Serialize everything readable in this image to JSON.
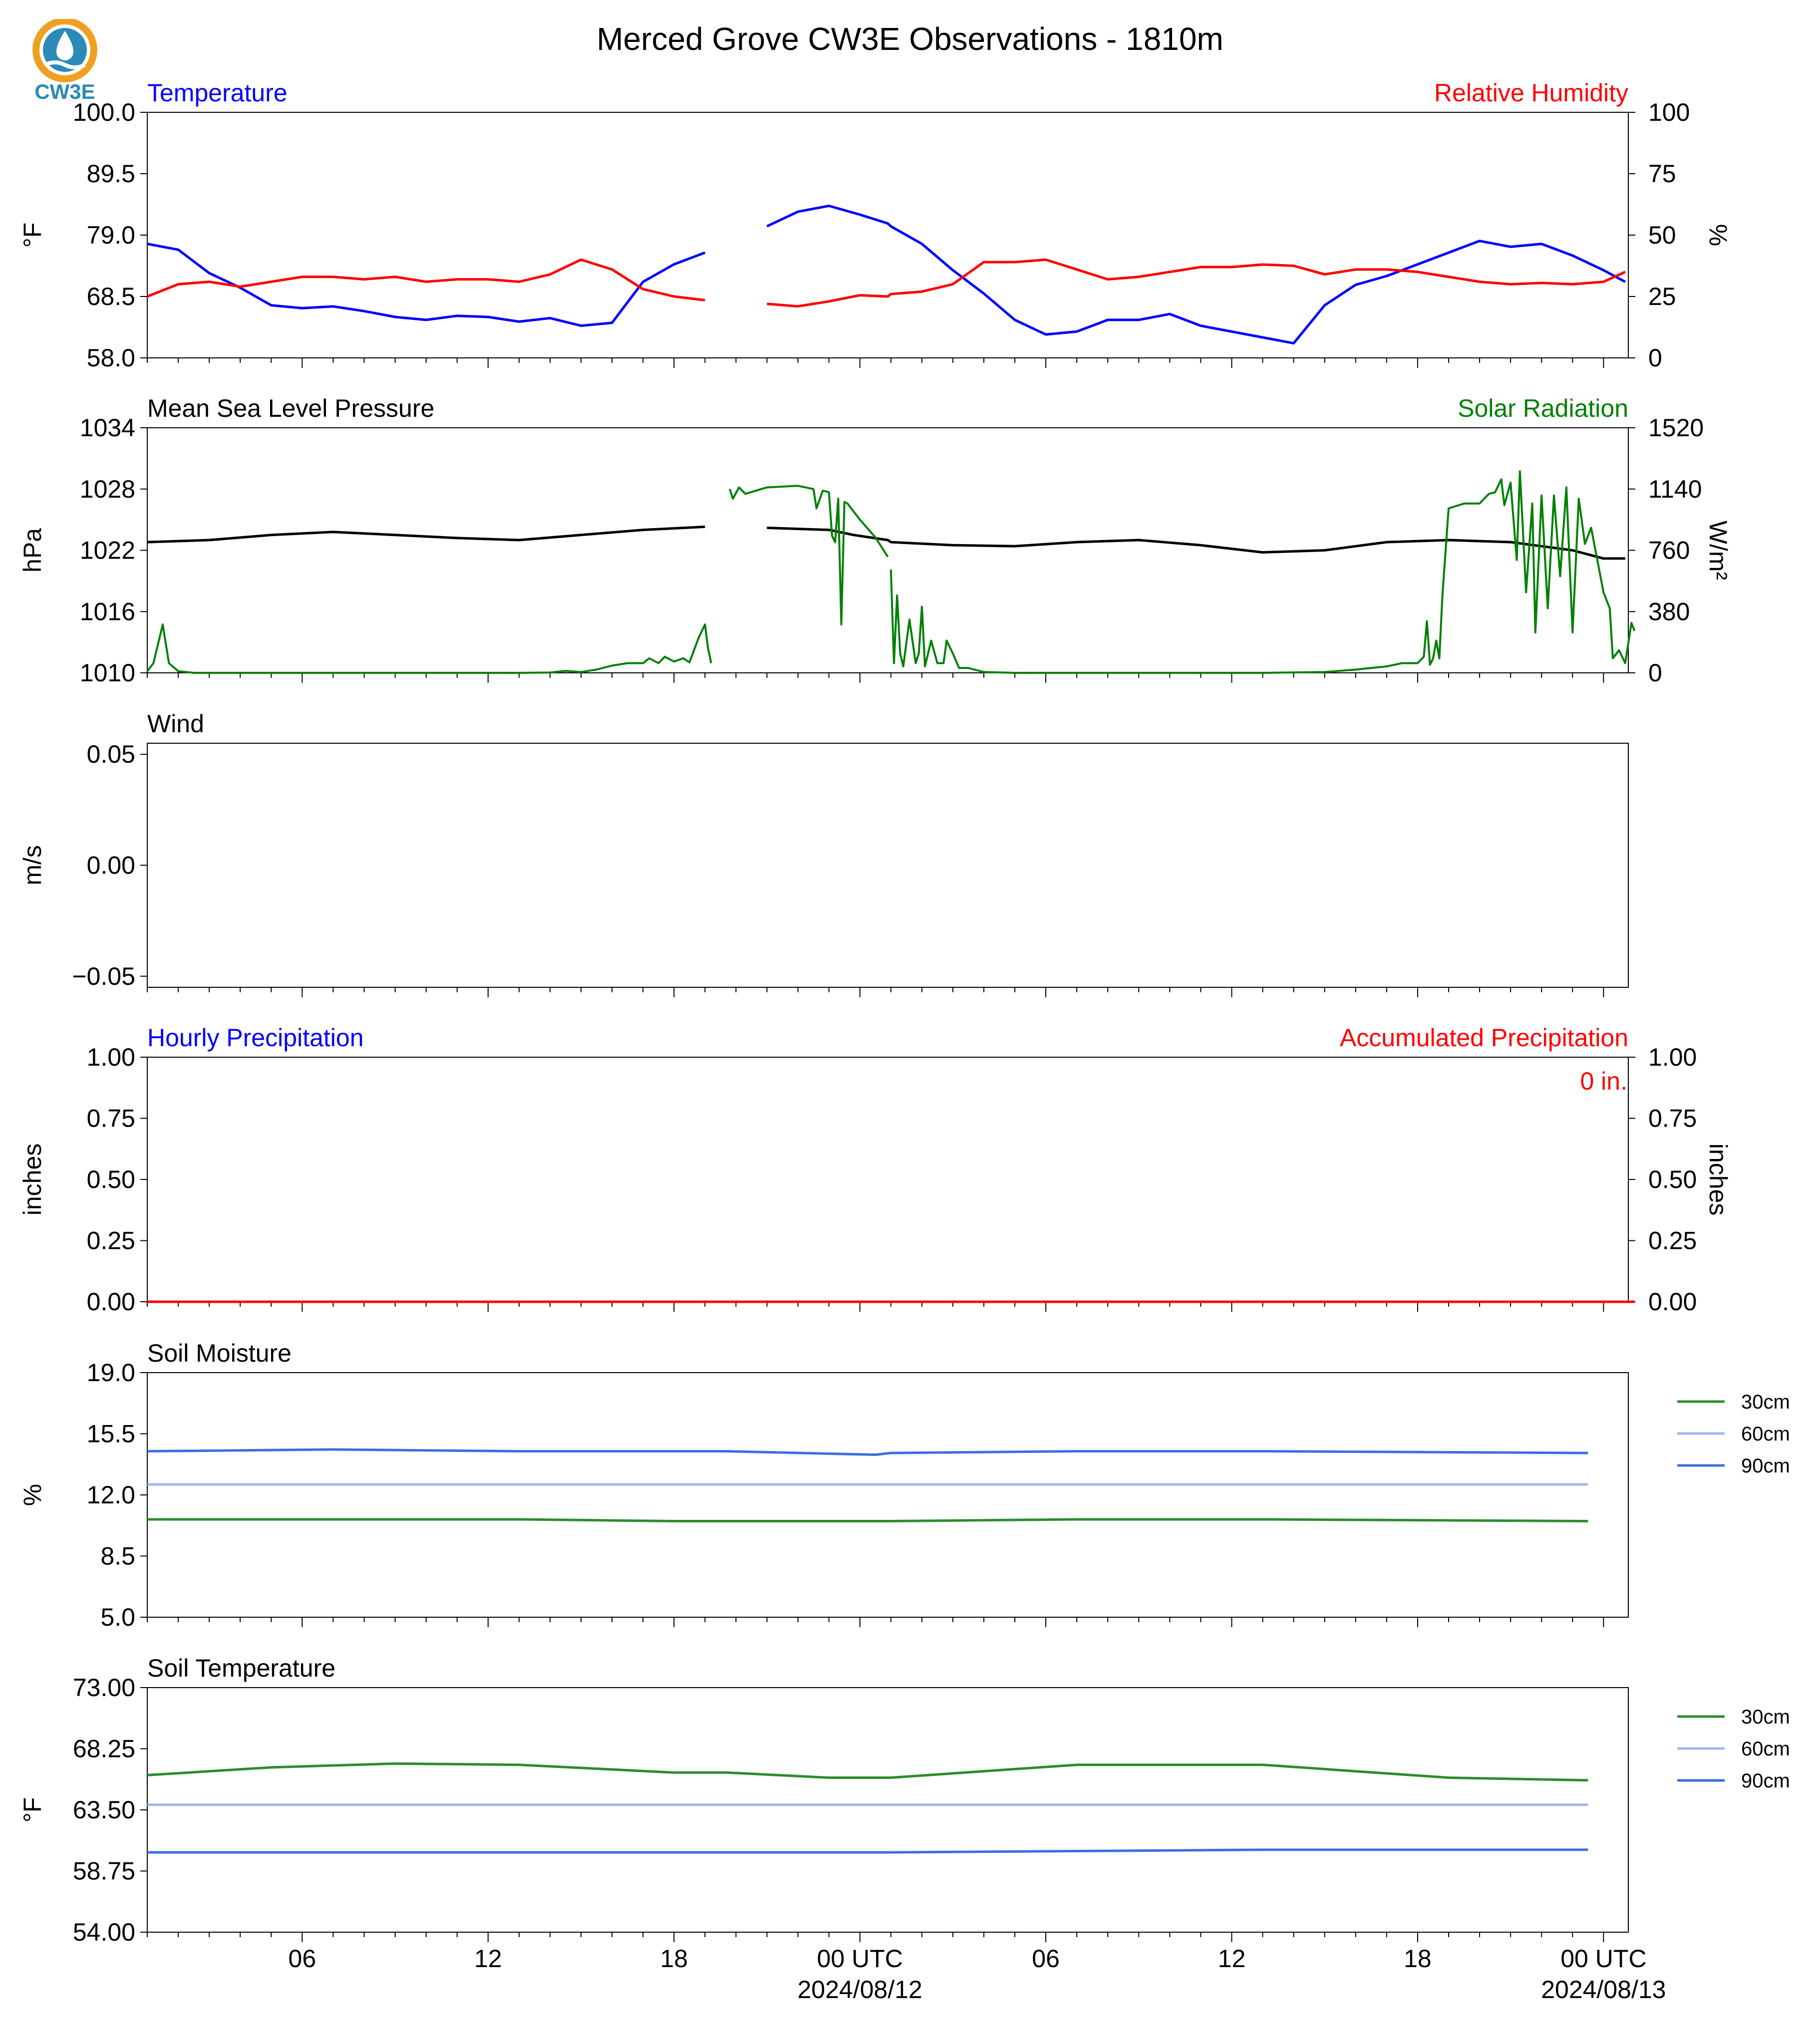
{
  "figure": {
    "title": "Merced Grove CW3E Observations - 1810m",
    "logo_text": "CW3E",
    "date_labels": [
      "2024/08/12",
      "2024/08/13"
    ]
  },
  "colors": {
    "temperature": "#0000ff",
    "humidity": "#ff0000",
    "pressure": "#000000",
    "solar": "#008000",
    "soil_30": "#2e8b2e",
    "soil_60": "#a4b4f0",
    "soil_90": "#3a6fe0",
    "logo_orange": "#f0a020",
    "logo_blue": "#2a8ab8"
  },
  "chart_data": [
    {
      "type": "line",
      "id": "temp",
      "title_left": "Temperature",
      "title_right": "Relative Humidity",
      "ylabel_left": "$^\\circ$F",
      "ylabel_right": "%",
      "ylim_left": [
        58.0,
        100.0
      ],
      "ylim_right": [
        0,
        100
      ],
      "yticks_left": [
        "58.0",
        "68.5",
        "79.0",
        "89.5",
        "100.0"
      ],
      "yticks_right": [
        "0",
        "25",
        "50",
        "75",
        "100"
      ],
      "x_hours": [
        0,
        1,
        2,
        3,
        4,
        5,
        6,
        7,
        8,
        9,
        10,
        11,
        12,
        13,
        14,
        15,
        16,
        17,
        18,
        18.7,
        20,
        21,
        22,
        23,
        23.9,
        24,
        25,
        26,
        27,
        28,
        29,
        30,
        31,
        32,
        33,
        34,
        35,
        36,
        37,
        38,
        39,
        40,
        41,
        42,
        43,
        44,
        45,
        46,
        47,
        47.7
      ],
      "series": [
        {
          "name": "Temperature",
          "axis": "left",
          "color_key": "temperature",
          "values": [
            77.5,
            76.5,
            72.5,
            70,
            67,
            66.5,
            66.8,
            66,
            65,
            64.5,
            65.2,
            65,
            64.2,
            64.8,
            63.5,
            64,
            71,
            74,
            76,
            null,
            80.5,
            83,
            84,
            82.5,
            81,
            80.5,
            77.5,
            73,
            69,
            64.5,
            62,
            62.5,
            64.5,
            64.5,
            65.5,
            63.5,
            62.5,
            61.5,
            60.5,
            67,
            70.5,
            72,
            74,
            76,
            78,
            77,
            77.5,
            75.5,
            73,
            71
          ]
        },
        {
          "name": "Relative Humidity",
          "axis": "right",
          "color_key": "humidity",
          "values": [
            25,
            30,
            31,
            29,
            31,
            33,
            33,
            32,
            33,
            31,
            32,
            32,
            31,
            34,
            40,
            36,
            28,
            25,
            23.5,
            null,
            22,
            21,
            23,
            25.5,
            25,
            26,
            27,
            30,
            39,
            39,
            40,
            36,
            32,
            33,
            35,
            37,
            37,
            38,
            37.5,
            34,
            36,
            36,
            35,
            33,
            31,
            30,
            30.5,
            30,
            31,
            35
          ]
        }
      ]
    },
    {
      "type": "line",
      "id": "pres",
      "title_left": "Mean Sea Level Pressure",
      "title_right": "Solar Radiation",
      "ylabel_left": "hPa",
      "ylabel_right": "W/m²",
      "ylim_left": [
        1010,
        1034
      ],
      "ylim_right": [
        0,
        1520
      ],
      "yticks_left": [
        "1010",
        "1016",
        "1022",
        "1028",
        "1034"
      ],
      "yticks_right": [
        "0",
        "380",
        "760",
        "1140",
        "1520"
      ],
      "x_hours": [
        0,
        2,
        4,
        6,
        8,
        10,
        12,
        14,
        16,
        18,
        18.7,
        20,
        22,
        22.8,
        23.9,
        24,
        26,
        28,
        30,
        32,
        34,
        36,
        38,
        40,
        42,
        44,
        46,
        47,
        47.7
      ],
      "series": [
        {
          "name": "Mean Sea Level Pressure",
          "axis": "left",
          "color_key": "pressure",
          "values": [
            1022.8,
            1023.0,
            1023.5,
            1023.8,
            1023.5,
            1023.2,
            1023.0,
            1023.5,
            1024.0,
            1024.3,
            null,
            1024.2,
            1024.0,
            1023.5,
            1023.0,
            1022.8,
            1022.5,
            1022.4,
            1022.8,
            1023.0,
            1022.5,
            1021.8,
            1022.0,
            1022.8,
            1023.0,
            1022.8,
            1022.0,
            1021.2,
            1021.2
          ]
        }
      ],
      "solar_points": [
        [
          0,
          10
        ],
        [
          0.2,
          60
        ],
        [
          0.5,
          300
        ],
        [
          0.7,
          60
        ],
        [
          1,
          10
        ],
        [
          1.5,
          0
        ],
        [
          3,
          0
        ],
        [
          6,
          0
        ],
        [
          9,
          0
        ],
        [
          12,
          0
        ],
        [
          13,
          2
        ],
        [
          13.5,
          12
        ],
        [
          14,
          5
        ],
        [
          14.5,
          20
        ],
        [
          15,
          45
        ],
        [
          15.5,
          60
        ],
        [
          16,
          60
        ],
        [
          16.2,
          90
        ],
        [
          16.5,
          60
        ],
        [
          16.7,
          100
        ],
        [
          17,
          70
        ],
        [
          17.3,
          90
        ],
        [
          17.5,
          65
        ],
        [
          17.8,
          220
        ],
        [
          18,
          300
        ],
        [
          18.1,
          150
        ],
        [
          18.2,
          60
        ],
        [
          18.7,
          null
        ],
        [
          18.8,
          1140
        ],
        [
          18.9,
          1080
        ],
        [
          19.1,
          1150
        ],
        [
          19.3,
          1110
        ],
        [
          20,
          1150
        ],
        [
          21,
          1160
        ],
        [
          21.5,
          1140
        ],
        [
          21.6,
          1020
        ],
        [
          21.8,
          1130
        ],
        [
          22,
          1120
        ],
        [
          22.1,
          850
        ],
        [
          22.2,
          810
        ],
        [
          22.3,
          1080
        ],
        [
          22.4,
          300
        ],
        [
          22.5,
          1060
        ],
        [
          22.6,
          1050
        ],
        [
          23.0,
          950
        ],
        [
          23.5,
          840
        ],
        [
          23.9,
          720
        ],
        [
          23.95,
          null
        ],
        [
          24.0,
          640
        ],
        [
          24.1,
          60
        ],
        [
          24.2,
          480
        ],
        [
          24.3,
          120
        ],
        [
          24.4,
          40
        ],
        [
          24.6,
          330
        ],
        [
          24.8,
          60
        ],
        [
          24.9,
          120
        ],
        [
          25.0,
          410
        ],
        [
          25.1,
          40
        ],
        [
          25.3,
          200
        ],
        [
          25.5,
          60
        ],
        [
          25.7,
          60
        ],
        [
          25.8,
          200
        ],
        [
          26.0,
          120
        ],
        [
          26.2,
          30
        ],
        [
          26.5,
          30
        ],
        [
          27,
          5
        ],
        [
          28,
          0
        ],
        [
          30,
          0
        ],
        [
          33,
          0
        ],
        [
          36,
          0
        ],
        [
          38,
          5
        ],
        [
          39,
          20
        ],
        [
          40,
          40
        ],
        [
          40.5,
          60
        ],
        [
          41,
          60
        ],
        [
          41.2,
          100
        ],
        [
          41.3,
          320
        ],
        [
          41.4,
          50
        ],
        [
          41.5,
          90
        ],
        [
          41.6,
          200
        ],
        [
          41.7,
          90
        ],
        [
          41.8,
          480
        ],
        [
          42,
          1020
        ],
        [
          42.5,
          1050
        ],
        [
          43,
          1050
        ],
        [
          43.3,
          1110
        ],
        [
          43.5,
          1120
        ],
        [
          43.7,
          1200
        ],
        [
          43.8,
          1040
        ],
        [
          44,
          1180
        ],
        [
          44.2,
          700
        ],
        [
          44.3,
          1250
        ],
        [
          44.5,
          500
        ],
        [
          44.7,
          1050
        ],
        [
          44.8,
          250
        ],
        [
          45,
          1100
        ],
        [
          45.2,
          400
        ],
        [
          45.4,
          1100
        ],
        [
          45.6,
          600
        ],
        [
          45.8,
          1150
        ],
        [
          46,
          250
        ],
        [
          46.2,
          1080
        ],
        [
          46.4,
          800
        ],
        [
          46.6,
          900
        ],
        [
          46.8,
          700
        ],
        [
          47,
          500
        ],
        [
          47.2,
          400
        ],
        [
          47.3,
          90
        ],
        [
          47.5,
          140
        ],
        [
          47.7,
          60
        ],
        [
          47.9,
          310
        ],
        [
          48,
          260
        ]
      ]
    },
    {
      "type": "line",
      "id": "wind",
      "title_left": "Wind",
      "ylabel_left": "m/s",
      "ylim_left": [
        -0.055,
        0.055
      ],
      "yticks_left": [
        "−0.05",
        "0.00",
        "0.05"
      ],
      "series": []
    },
    {
      "type": "line",
      "id": "precip",
      "title_left": "Hourly Precipitation",
      "title_right": "Accumulated Precipitation",
      "ylabel_left": "inches",
      "ylabel_right": "inches",
      "ylim_left": [
        0,
        1
      ],
      "ylim_right": [
        0,
        1
      ],
      "yticks_left": [
        "0.00",
        "0.25",
        "0.50",
        "0.75",
        "1.00"
      ],
      "yticks_right": [
        "0.00",
        "0.25",
        "0.50",
        "0.75",
        "1.00"
      ],
      "accumulated_label": "0 in.",
      "series": [
        {
          "name": "Hourly Precipitation",
          "axis": "left",
          "color_key": "temperature",
          "x_hours": [
            0,
            48
          ],
          "values": [
            0,
            0
          ]
        },
        {
          "name": "Accumulated Precipitation",
          "axis": "right",
          "color_key": "humidity",
          "x_hours": [
            0,
            48
          ],
          "values": [
            0,
            0
          ]
        }
      ]
    },
    {
      "type": "line",
      "id": "soilm",
      "title_left": "Soil Moisture",
      "ylabel_left": "%",
      "ylim_left": [
        5.0,
        19.0
      ],
      "yticks_left": [
        "5.0",
        "8.5",
        "12.0",
        "15.5",
        "19.0"
      ],
      "legend": [
        "30cm",
        "60cm",
        "90cm"
      ],
      "x_hours": [
        0,
        6,
        12,
        17,
        18.7,
        23.5,
        24,
        30,
        36,
        46.5,
        47,
        48
      ],
      "series": [
        {
          "name": "30cm",
          "color_key": "soil_30",
          "values": [
            10.6,
            10.6,
            10.6,
            10.5,
            10.5,
            10.5,
            10.5,
            10.6,
            10.6,
            10.5,
            null,
            10.5
          ]
        },
        {
          "name": "60cm",
          "color_key": "soil_60",
          "values": [
            12.6,
            12.6,
            12.6,
            12.6,
            12.6,
            12.6,
            12.6,
            12.6,
            12.6,
            12.6,
            null,
            12.6
          ]
        },
        {
          "name": "90cm",
          "color_key": "soil_90",
          "values": [
            14.5,
            14.6,
            14.5,
            14.5,
            14.5,
            14.3,
            14.4,
            14.5,
            14.5,
            14.4,
            null,
            14.4
          ]
        }
      ]
    },
    {
      "type": "line",
      "id": "soilt",
      "title_left": "Soil Temperature",
      "ylabel_left": "$^\\circ$F",
      "ylim_left": [
        54.0,
        73.0
      ],
      "yticks_left": [
        "54.00",
        "58.75",
        "63.50",
        "68.25",
        "73.00"
      ],
      "legend": [
        "30cm",
        "60cm",
        "90cm"
      ],
      "x_hours": [
        0,
        4,
        8,
        12,
        17,
        18.7,
        22,
        24,
        30,
        36,
        42,
        46.5,
        47,
        48
      ],
      "series": [
        {
          "name": "30cm",
          "color_key": "soil_30",
          "values": [
            66.2,
            66.8,
            67.1,
            67.0,
            66.4,
            66.4,
            66.0,
            66.0,
            67.0,
            67.0,
            66.0,
            65.8,
            null,
            65.9
          ]
        },
        {
          "name": "60cm",
          "color_key": "soil_60",
          "values": [
            63.9,
            63.9,
            63.9,
            63.9,
            63.9,
            63.9,
            63.9,
            63.9,
            63.9,
            63.9,
            63.9,
            63.9,
            null,
            63.9
          ]
        },
        {
          "name": "90cm",
          "color_key": "soil_90",
          "values": [
            60.2,
            60.2,
            60.2,
            60.2,
            60.2,
            60.2,
            60.2,
            60.2,
            60.3,
            60.4,
            60.4,
            60.4,
            null,
            60.4
          ]
        }
      ]
    }
  ],
  "x_axis": {
    "range_hours": [
      0,
      47.8
    ],
    "tick_labels": [
      {
        "hour": 5,
        "label": "06"
      },
      {
        "hour": 11,
        "label": "12"
      },
      {
        "hour": 17,
        "label": "18"
      },
      {
        "hour": 23,
        "label": "00 UTC"
      },
      {
        "hour": 29,
        "label": "06"
      },
      {
        "hour": 35,
        "label": "12"
      },
      {
        "hour": 41,
        "label": "18"
      },
      {
        "hour": 47,
        "label": "00 UTC"
      }
    ]
  }
}
